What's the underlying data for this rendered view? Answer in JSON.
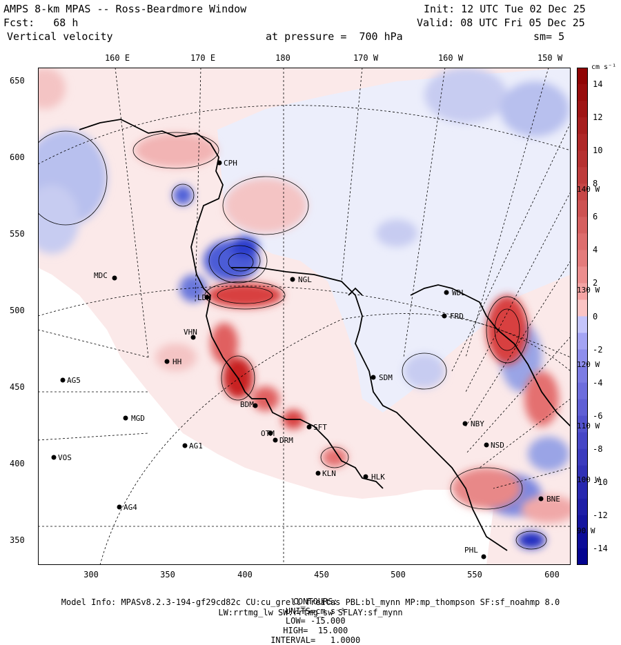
{
  "header": {
    "title": "AMPS 8-km MPAS -- Ross-Beardmore Window",
    "init": "Init: 12 UTC Tue 02 Dec 25",
    "fcst": "Fcst:   68 h",
    "valid": "Valid: 08 UTC Fri 05 Dec 25",
    "field": "Vertical velocity",
    "pressure": "at pressure =  700 hPa",
    "smooth": "sm= 5"
  },
  "longitude_labels": [
    "160 E",
    "170 E",
    "180",
    "170 W",
    "160 W",
    "150 W"
  ],
  "x_ticks": [
    "300",
    "350",
    "400",
    "450",
    "500",
    "550",
    "600"
  ],
  "y_ticks": [
    "650",
    "600",
    "550",
    "500",
    "450",
    "400",
    "350"
  ],
  "colorbar": {
    "unit": "cm s⁻¹",
    "labels": [
      "14",
      "12",
      "10",
      "8",
      "6",
      "4",
      "2",
      "0",
      "-2",
      "-4",
      "-6",
      "-8",
      "-10",
      "-12",
      "-14"
    ],
    "colors": {
      "positive": "#c80000",
      "negative": "#0000c8",
      "zero": "#ffffff"
    }
  },
  "inset_lon_labels": [
    "140 W",
    "130 W",
    "120 W",
    "110 W",
    "100 W",
    "90 W"
  ],
  "stations": [
    {
      "name": "CPH"
    },
    {
      "name": "NGL"
    },
    {
      "name": "MDC"
    },
    {
      "name": "LDM"
    },
    {
      "name": "WDL"
    },
    {
      "name": "FRD"
    },
    {
      "name": "VHN"
    },
    {
      "name": "HH"
    },
    {
      "name": "AG5"
    },
    {
      "name": "SDM"
    },
    {
      "name": "BDM"
    },
    {
      "name": "MGD"
    },
    {
      "name": "OTM"
    },
    {
      "name": "SFT"
    },
    {
      "name": "DRM"
    },
    {
      "name": "NBY"
    },
    {
      "name": "AG1"
    },
    {
      "name": "NSD"
    },
    {
      "name": "VOS"
    },
    {
      "name": "KLN"
    },
    {
      "name": "HLK"
    },
    {
      "name": "AG4"
    },
    {
      "name": "BNE"
    },
    {
      "name": "PHL"
    }
  ],
  "footer": {
    "contours_label": "CONTOURS:",
    "units": "UNITS=cm s⁻¹",
    "low": "LOW= -15.000",
    "high": "HIGH=  15.000",
    "interval": "INTERVAL=   1.0000",
    "model_info": "Model Info: MPASv8.2.3-194-gf29cd82c CU:cu_grell_freitas PBL:bl_mynn MP:mp_thompson SF:sf_noahmp 8.0",
    "model_info2": "LW:rrtmg_lw SW:rrtmg_sw SFLAY:sf_mynn"
  }
}
